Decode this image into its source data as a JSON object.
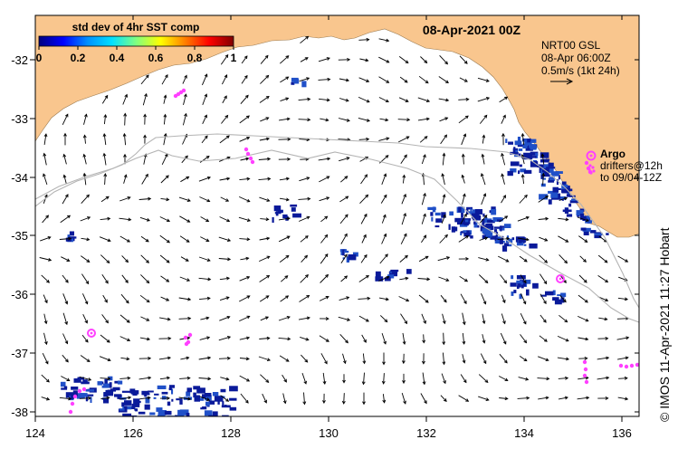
{
  "map": {
    "title": "08-Apr-2021 00Z",
    "colorbar": {
      "title": "std dev of 4hr SST comp",
      "ticks": [
        "0",
        "0.2",
        "0.4",
        "0.6",
        "0.8",
        "1"
      ],
      "colors": [
        "#000080",
        "#0000ff",
        "#0090ff",
        "#00e0ff",
        "#80ff80",
        "#ffff00",
        "#ff8000",
        "#ff0000",
        "#800000"
      ]
    },
    "current_info": {
      "line1": "NRT00 GSL",
      "line2": "08-Apr 06:00Z",
      "line3": "0.5m/s (1kt 24h)"
    },
    "legend": {
      "argo_label": "Argo",
      "drifters_line1": "drifters@12h",
      "drifters_line2": "to 09/04-12Z"
    },
    "side_label": "© IMOS 11-Apr-2021 11:27 Hobart",
    "x_ticks": [
      "124",
      "126",
      "128",
      "130",
      "132",
      "134",
      "136"
    ],
    "y_ticks": [
      "-32",
      "-33",
      "-34",
      "-35",
      "-36",
      "-37",
      "-38"
    ],
    "colors": {
      "land": "#f9c68e",
      "sst_dark": "#0a1a9a",
      "sst_mid": "#2050c8",
      "contour": "#b4b4b4",
      "argo": "#ff40ff"
    }
  }
}
